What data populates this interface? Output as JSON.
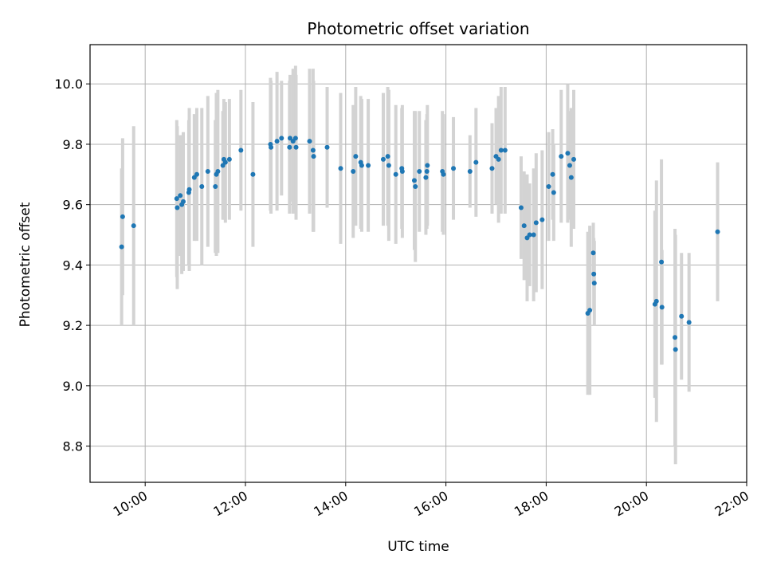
{
  "chart_data": {
    "type": "scatter",
    "title": "Photometric offset variation",
    "xlabel": "UTC time",
    "ylabel": "Photometric offset",
    "x_unit": "hours UTC",
    "xlim": [
      8.9,
      22.0
    ],
    "ylim": [
      8.68,
      10.13
    ],
    "x_ticks": [
      10,
      12,
      14,
      16,
      18,
      20,
      22
    ],
    "x_tick_labels": [
      "10:00",
      "12:00",
      "14:00",
      "16:00",
      "18:00",
      "20:00",
      "22:00"
    ],
    "y_ticks": [
      8.8,
      9.0,
      9.2,
      9.4,
      9.6,
      9.8,
      10.0
    ],
    "y_tick_labels": [
      "8.8",
      "9.0",
      "9.2",
      "9.4",
      "9.6",
      "9.8",
      "10.0"
    ],
    "grid": true,
    "point_color": "#1f77b4",
    "errorbar_color": "#d3d3d3",
    "series": [
      {
        "x": [
          9.53,
          9.55,
          9.77,
          10.63,
          10.64,
          10.7,
          10.73,
          10.76,
          10.87,
          10.88,
          10.98,
          11.03,
          11.13,
          11.25,
          11.4,
          11.42,
          11.45,
          11.55,
          11.57,
          11.6,
          11.68,
          11.91,
          12.15,
          12.5,
          12.51,
          12.63,
          12.72,
          12.88,
          12.89,
          12.95,
          13.0,
          13.01,
          13.28,
          13.35,
          13.36,
          13.63,
          13.9,
          14.15,
          14.2,
          14.3,
          14.32,
          14.45,
          14.75,
          14.84,
          14.86,
          15.0,
          15.12,
          15.13,
          15.37,
          15.39,
          15.47,
          15.6,
          15.62,
          15.63,
          15.93,
          15.95,
          16.15,
          16.48,
          16.6,
          16.92,
          17.0,
          17.05,
          17.1,
          17.18,
          17.5,
          17.56,
          17.62,
          17.67,
          17.75,
          17.8,
          17.92,
          18.05,
          18.13,
          18.15,
          18.3,
          18.43,
          18.47,
          18.5,
          18.55,
          18.83,
          18.87,
          18.94,
          18.95,
          18.96,
          20.17,
          20.2,
          20.3,
          20.31,
          20.57,
          20.58,
          20.7,
          20.85,
          21.42
        ],
        "y": [
          9.46,
          9.56,
          9.53,
          9.62,
          9.59,
          9.63,
          9.6,
          9.61,
          9.64,
          9.65,
          9.69,
          9.7,
          9.66,
          9.71,
          9.66,
          9.7,
          9.71,
          9.73,
          9.75,
          9.74,
          9.75,
          9.78,
          9.7,
          9.8,
          9.79,
          9.81,
          9.82,
          9.79,
          9.82,
          9.81,
          9.82,
          9.79,
          9.81,
          9.78,
          9.76,
          9.79,
          9.72,
          9.71,
          9.76,
          9.74,
          9.73,
          9.73,
          9.75,
          9.76,
          9.73,
          9.7,
          9.72,
          9.71,
          9.68,
          9.66,
          9.71,
          9.69,
          9.71,
          9.73,
          9.71,
          9.7,
          9.72,
          9.71,
          9.74,
          9.72,
          9.76,
          9.75,
          9.78,
          9.78,
          9.59,
          9.53,
          9.49,
          9.5,
          9.5,
          9.54,
          9.55,
          9.66,
          9.7,
          9.64,
          9.76,
          9.77,
          9.73,
          9.69,
          9.75,
          9.24,
          9.25,
          9.44,
          9.37,
          9.34,
          9.27,
          9.28,
          9.41,
          9.26,
          9.16,
          9.12,
          9.23,
          9.21,
          9.51
        ],
        "err": [
          0.26,
          0.26,
          0.33,
          0.26,
          0.27,
          0.2,
          0.23,
          0.23,
          0.24,
          0.27,
          0.21,
          0.22,
          0.26,
          0.25,
          0.22,
          0.27,
          0.27,
          0.18,
          0.2,
          0.2,
          0.2,
          0.2,
          0.24,
          0.22,
          0.22,
          0.23,
          0.19,
          0.22,
          0.21,
          0.24,
          0.24,
          0.24,
          0.24,
          0.27,
          0.25,
          0.2,
          0.25,
          0.22,
          0.23,
          0.22,
          0.22,
          0.22,
          0.22,
          0.23,
          0.25,
          0.23,
          0.2,
          0.22,
          0.23,
          0.25,
          0.2,
          0.19,
          0.19,
          0.2,
          0.2,
          0.2,
          0.17,
          0.12,
          0.18,
          0.15,
          0.16,
          0.21,
          0.21,
          0.21,
          0.17,
          0.18,
          0.21,
          0.17,
          0.22,
          0.23,
          0.23,
          0.18,
          0.15,
          0.16,
          0.22,
          0.23,
          0.18,
          0.23,
          0.23,
          0.27,
          0.28,
          0.1,
          0.12,
          0.14,
          0.31,
          0.4,
          0.34,
          0.19,
          0.36,
          0.38,
          0.21,
          0.23,
          0.23
        ]
      }
    ]
  }
}
